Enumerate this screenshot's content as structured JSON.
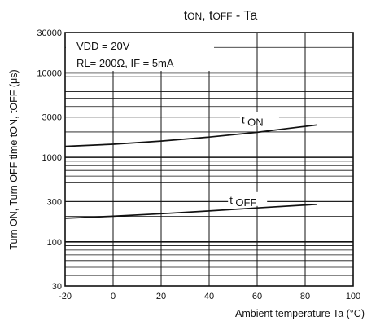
{
  "chart_data": {
    "type": "line",
    "title": "tON, tOFF - Ta",
    "xlabel": "Ambient temperature Ta (°C)",
    "ylabel": "Turn ON, Turn OFF time tON, tOFF (μs)",
    "x_scale": "linear",
    "y_scale": "log",
    "xlim": [
      -20,
      100
    ],
    "ylim": [
      30,
      30000
    ],
    "x_ticks": [
      -20,
      0,
      20,
      40,
      60,
      80,
      100
    ],
    "x_tick_labels": [
      "-20",
      "0",
      "20",
      "40",
      "60",
      "80",
      "100"
    ],
    "y_ticks": [
      30,
      100,
      300,
      1000,
      3000,
      10000,
      30000
    ],
    "y_tick_labels": [
      "30",
      "100",
      "300",
      "1000",
      "3000",
      "10000",
      "30000"
    ],
    "grid": true,
    "conditions": [
      "VDD = 20V",
      "RL= 200Ω, IF = 5mA"
    ],
    "series": [
      {
        "name": "t ON",
        "x": [
          -20,
          0,
          20,
          40,
          60,
          70,
          85
        ],
        "y": [
          1350,
          1430,
          1560,
          1740,
          1980,
          2150,
          2420
        ]
      },
      {
        "name": "t OFF",
        "x": [
          -20,
          0,
          20,
          40,
          60,
          85
        ],
        "y": [
          190,
          201,
          215,
          232,
          252,
          278
        ]
      }
    ]
  }
}
